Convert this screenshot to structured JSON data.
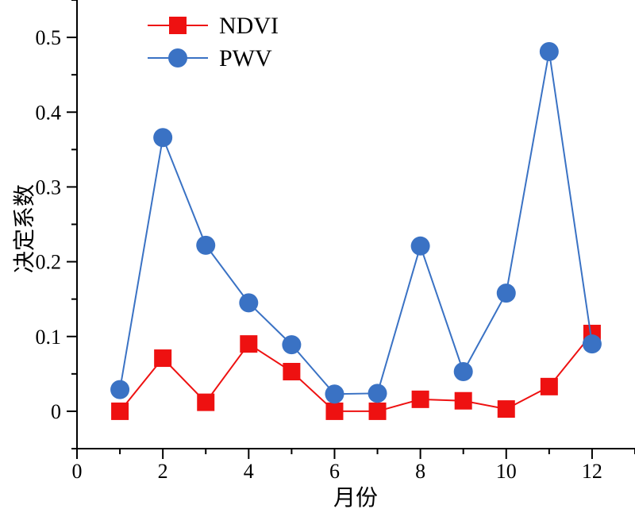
{
  "chart_data": {
    "type": "line",
    "xlabel": "月份",
    "ylabel": "决定系数",
    "xlim": [
      0,
      13
    ],
    "ylim": [
      -0.05,
      0.55
    ],
    "xticks": [
      0,
      2,
      4,
      6,
      8,
      10,
      12
    ],
    "xtick_labels": [
      "0",
      "2",
      "4",
      "6",
      "8",
      "10",
      "12"
    ],
    "yticks": [
      0,
      0.1,
      0.2,
      0.3,
      0.4,
      0.5
    ],
    "ytick_labels": [
      "0",
      "0.1",
      "0.2",
      "0.3",
      "0.4",
      "0.5"
    ],
    "grid": false,
    "legend_position": "top-left",
    "x": [
      1,
      2,
      3,
      4,
      5,
      6,
      7,
      8,
      9,
      10,
      11,
      12
    ],
    "series": [
      {
        "name": "NDVI",
        "color": "#ee1111",
        "marker": "square",
        "values": [
          0.0,
          0.071,
          0.012,
          0.09,
          0.053,
          0.0,
          0.0,
          0.016,
          0.014,
          0.003,
          0.033,
          0.104
        ]
      },
      {
        "name": "PWV",
        "color": "#3a72c4",
        "marker": "circle",
        "values": [
          0.029,
          0.366,
          0.222,
          0.145,
          0.089,
          0.023,
          0.024,
          0.221,
          0.053,
          0.158,
          0.481,
          0.09
        ]
      }
    ]
  }
}
